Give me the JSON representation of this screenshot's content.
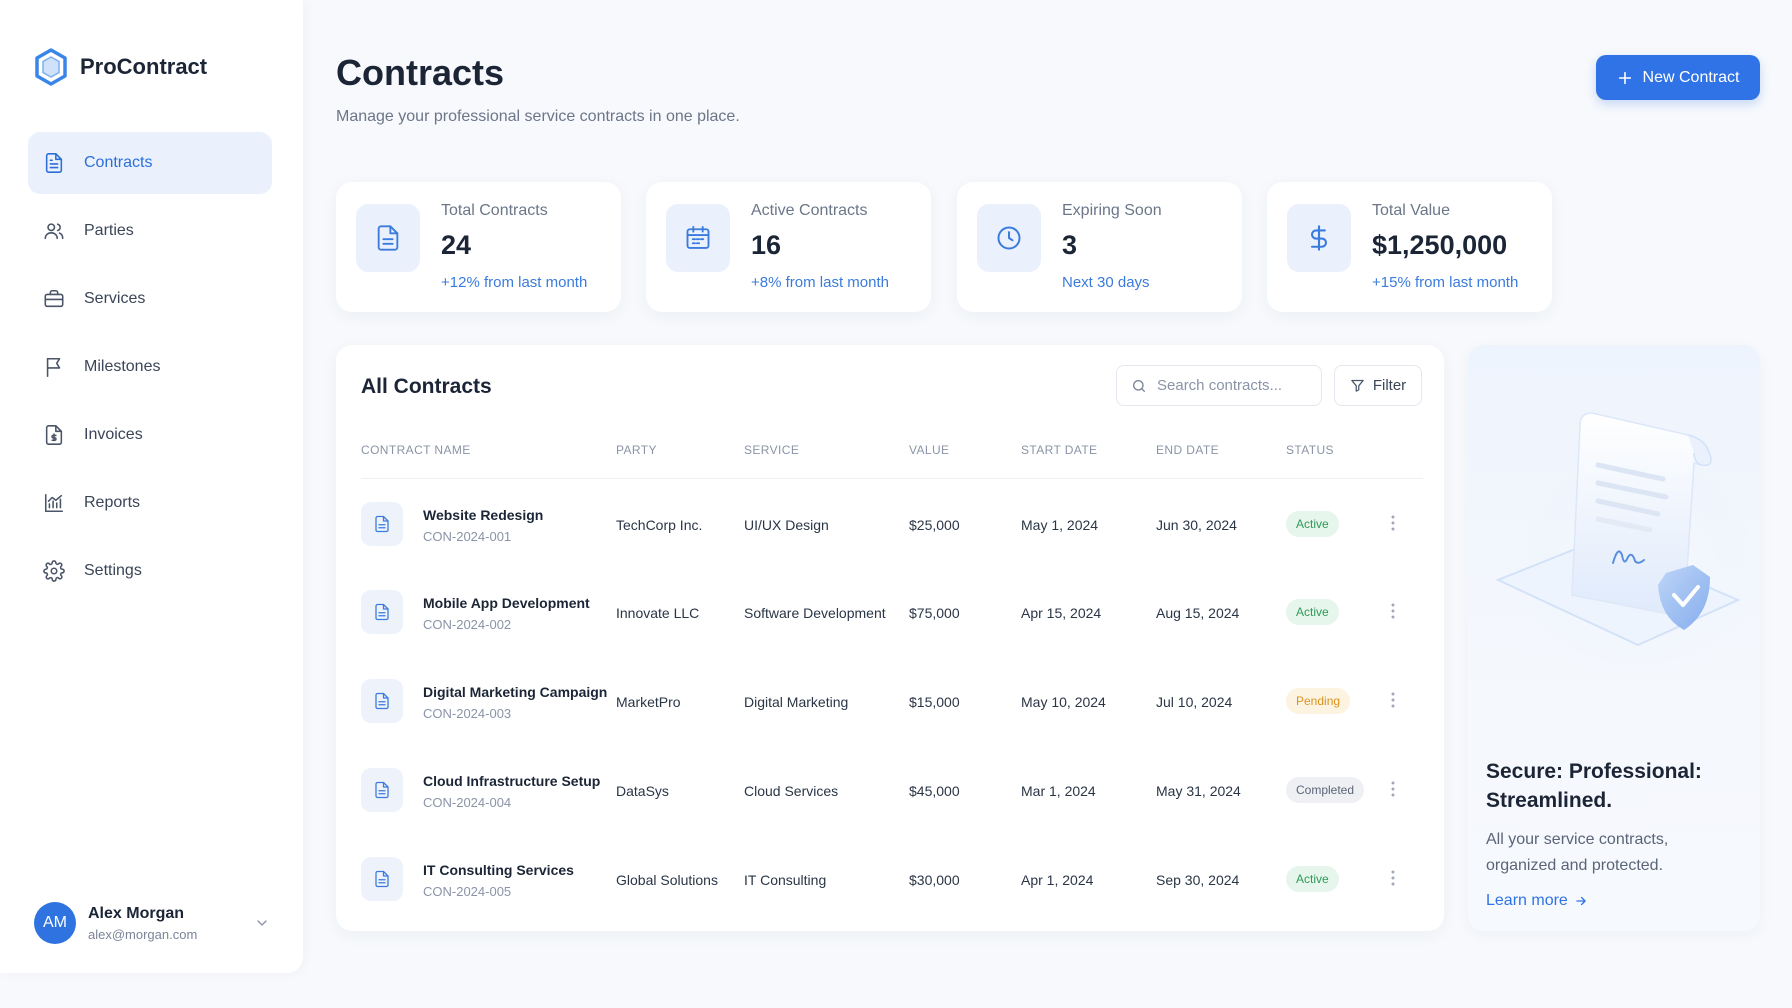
{
  "brand": {
    "name": "ProContract",
    "color": "#3a86e8"
  },
  "sidebar": {
    "items": [
      {
        "label": "Contracts",
        "icon": "document-icon",
        "active": true
      },
      {
        "label": "Parties",
        "icon": "users-icon"
      },
      {
        "label": "Services",
        "icon": "briefcase-icon"
      },
      {
        "label": "Milestones",
        "icon": "flag-icon"
      },
      {
        "label": "Invoices",
        "icon": "invoice-icon"
      },
      {
        "label": "Reports",
        "icon": "chart-icon"
      },
      {
        "label": "Settings",
        "icon": "gear-icon"
      }
    ]
  },
  "user": {
    "initials": "AM",
    "name": "Alex Morgan",
    "email": "alex@morgan.com"
  },
  "header": {
    "title": "Contracts",
    "subtitle": "Manage your professional service contracts in one place.",
    "new_button_label": "New Contract"
  },
  "stats": [
    {
      "label": "Total Contracts",
      "value": "24",
      "note": "+12% from last month",
      "icon": "document-icon"
    },
    {
      "label": "Active Contracts",
      "value": "16",
      "note": "+8% from last month",
      "icon": "calendar-icon"
    },
    {
      "label": "Expiring Soon",
      "value": "3",
      "note": "Next 30 days",
      "icon": "clock-icon"
    },
    {
      "label": "Total Value",
      "value": "$1,250,000",
      "note": "+15% from last month",
      "icon": "dollar-icon"
    }
  ],
  "table": {
    "title": "All Contracts",
    "search_placeholder": "Search contracts...",
    "filter_label": "Filter",
    "columns": [
      "CONTRACT NAME",
      "PARTY",
      "SERVICE",
      "VALUE",
      "START DATE",
      "END DATE",
      "STATUS"
    ],
    "rows": [
      {
        "name": "Website Redesign",
        "id": "CON-2024-001",
        "party": "TechCorp Inc.",
        "service": "UI/UX Design",
        "value": "$25,000",
        "start": "May 1, 2024",
        "end": "Jun 30, 2024",
        "status": "Active",
        "status_type": "active"
      },
      {
        "name": "Mobile App Development",
        "id": "CON-2024-002",
        "party": "Innovate LLC",
        "service": "Software Development",
        "value": "$75,000",
        "start": "Apr 15, 2024",
        "end": "Aug 15, 2024",
        "status": "Active",
        "status_type": "active"
      },
      {
        "name": "Digital Marketing Campaign",
        "id": "CON-2024-003",
        "party": "MarketPro",
        "service": "Digital Marketing",
        "value": "$15,000",
        "start": "May 10, 2024",
        "end": "Jul 10, 2024",
        "status": "Pending",
        "status_type": "pending"
      },
      {
        "name": "Cloud Infrastructure Setup",
        "id": "CON-2024-004",
        "party": "DataSys",
        "service": "Cloud Services",
        "value": "$45,000",
        "start": "Mar 1, 2024",
        "end": "May 31, 2024",
        "status": "Completed",
        "status_type": "completed"
      },
      {
        "name": "IT Consulting Services",
        "id": "CON-2024-005",
        "party": "Global Solutions",
        "service": "IT Consulting",
        "value": "$30,000",
        "start": "Apr 1, 2024",
        "end": "Sep 30, 2024",
        "status": "Active",
        "status_type": "active"
      }
    ]
  },
  "promo": {
    "title": "Secure: Professional: Streamlined.",
    "text": "All your service contracts, organized and protected.",
    "link_label": "Learn more"
  }
}
